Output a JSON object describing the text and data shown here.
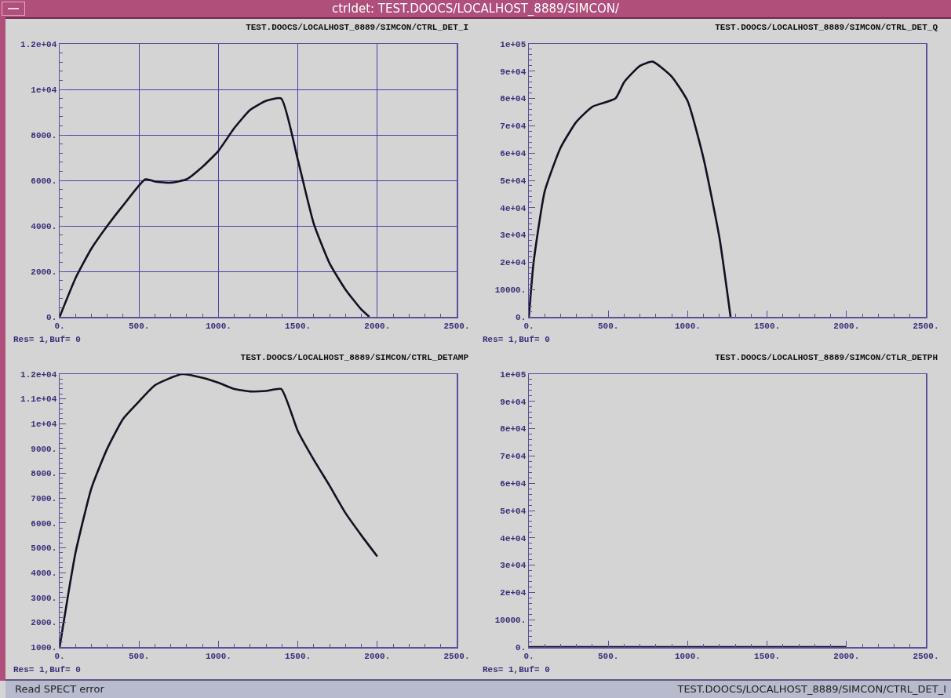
{
  "chart_data": [
    {
      "type": "line",
      "title": "TEST.DOOCS/LOCALHOST_8889/SIMCON/CTRL_DET_I",
      "annotations": [
        "Res= 1,Buf= 0",
        "ctrldet: TEST.DOOCS/LOCALHOST_8889/SIMCON/"
      ],
      "grid": true,
      "marker": "none",
      "line_style": "solid",
      "xlim": [
        0,
        2500
      ],
      "xticks": [
        {
          "value": 0,
          "label": "0."
        },
        {
          "value": 500,
          "label": "500."
        },
        {
          "value": 1000,
          "label": "1000."
        },
        {
          "value": 1500,
          "label": "1500."
        },
        {
          "value": 2000,
          "label": "2000."
        },
        {
          "value": 2500,
          "label": "2500."
        }
      ],
      "ylim": [
        0,
        12000
      ],
      "yticks": [
        {
          "value": 0,
          "label": "0."
        },
        {
          "value": 2000,
          "label": "2000."
        },
        {
          "value": 4000,
          "label": "4000."
        },
        {
          "value": 6000,
          "label": "6000."
        },
        {
          "value": 8000,
          "label": "8000."
        },
        {
          "value": 10000,
          "label": "1e+04"
        },
        {
          "value": 12000,
          "label": "1.2e+04"
        }
      ],
      "x": [
        0,
        100,
        200,
        300,
        400,
        540,
        600,
        700,
        800,
        900,
        1000,
        1100,
        1200,
        1300,
        1395,
        1500,
        1600,
        1700,
        1800,
        1900,
        1950
      ],
      "series": [
        {
          "color": "#111122",
          "values": [
            0,
            1700,
            3000,
            4000,
            4900,
            6050,
            5950,
            5900,
            6050,
            6600,
            7300,
            8300,
            9100,
            9500,
            9600,
            6900,
            4100,
            2350,
            1200,
            320,
            0
          ]
        }
      ]
    },
    {
      "type": "line",
      "title": "TEST.DOOCS/LOCALHOST_8889/SIMCON/CTRL_DET_Q",
      "annotations": [
        "Res= 1,Buf= 0"
      ],
      "grid": false,
      "marker": "none",
      "line_style": "solid",
      "xlim": [
        0,
        2500
      ],
      "xticks": [
        {
          "value": 0,
          "label": "0."
        },
        {
          "value": 500,
          "label": "500."
        },
        {
          "value": 1000,
          "label": "1000."
        },
        {
          "value": 1500,
          "label": "1500."
        },
        {
          "value": 2000,
          "label": "2000."
        },
        {
          "value": 2500,
          "label": "2500."
        }
      ],
      "ylim": [
        0,
        100000
      ],
      "yticks": [
        {
          "value": 0,
          "label": "0."
        },
        {
          "value": 10000,
          "label": "10000."
        },
        {
          "value": 20000,
          "label": "2e+04"
        },
        {
          "value": 30000,
          "label": "3e+04"
        },
        {
          "value": 40000,
          "label": "4e+04"
        },
        {
          "value": 50000,
          "label": "5e+04"
        },
        {
          "value": 60000,
          "label": "6e+04"
        },
        {
          "value": 70000,
          "label": "7e+04"
        },
        {
          "value": 80000,
          "label": "8e+04"
        },
        {
          "value": 90000,
          "label": "9e+04"
        },
        {
          "value": 100000,
          "label": "1e+05"
        }
      ],
      "x": [
        0,
        30,
        100,
        200,
        300,
        400,
        545,
        600,
        700,
        780,
        900,
        1000,
        1100,
        1200,
        1270
      ],
      "series": [
        {
          "color": "#111122",
          "values": [
            0,
            20000,
            46000,
            62000,
            71500,
            77000,
            80000,
            86000,
            92000,
            93500,
            88000,
            79000,
            58000,
            29000,
            0
          ]
        }
      ]
    },
    {
      "type": "line",
      "title": "TEST.DOOCS/LOCALHOST_8889/SIMCON/CTRL_DETAMP",
      "annotations": [
        "Res= 1,Buf= 0",
        "Read SPECT error"
      ],
      "grid": false,
      "marker": "none",
      "line_style": "solid",
      "xlim": [
        0,
        2500
      ],
      "xticks": [
        {
          "value": 0,
          "label": "0."
        },
        {
          "value": 500,
          "label": "500."
        },
        {
          "value": 1000,
          "label": "1000."
        },
        {
          "value": 1500,
          "label": "1500."
        },
        {
          "value": 2000,
          "label": "2000."
        },
        {
          "value": 2500,
          "label": "2500."
        }
      ],
      "ylim": [
        1000,
        12000
      ],
      "yticks": [
        {
          "value": 1000,
          "label": "1000."
        },
        {
          "value": 2000,
          "label": "2000."
        },
        {
          "value": 3000,
          "label": "3000."
        },
        {
          "value": 4000,
          "label": "4000."
        },
        {
          "value": 5000,
          "label": "5000."
        },
        {
          "value": 6000,
          "label": "6000."
        },
        {
          "value": 7000,
          "label": "7000."
        },
        {
          "value": 8000,
          "label": "8000."
        },
        {
          "value": 9000,
          "label": "9000."
        },
        {
          "value": 10000,
          "label": "1e+04"
        },
        {
          "value": 11000,
          "label": "1.1e+04"
        },
        {
          "value": 12000,
          "label": "1.2e+04"
        }
      ],
      "x": [
        0,
        50,
        100,
        200,
        300,
        400,
        500,
        600,
        770,
        900,
        1000,
        1100,
        1200,
        1300,
        1395,
        1500,
        1600,
        1700,
        1800,
        1900,
        2000
      ],
      "series": [
        {
          "color": "#111122",
          "values": [
            1000,
            2970,
            4800,
            7400,
            9000,
            10200,
            10900,
            11550,
            12000,
            11850,
            11650,
            11400,
            11300,
            11320,
            11400,
            9700,
            8550,
            7500,
            6400,
            5500,
            4650
          ]
        }
      ]
    },
    {
      "type": "line",
      "title": "TEST.DOOCS/LOCALHOST_8889/SIMCON/CTLR_DETPH",
      "annotations": [
        "Res= 1,Buf= 0",
        "TEST.DOOCS/LOCALHOST_8889/SIMCON/CTRL_DET_I"
      ],
      "grid": false,
      "marker": "none",
      "line_style": "solid",
      "xlim": [
        0,
        2500
      ],
      "xticks": [
        {
          "value": 0,
          "label": "0."
        },
        {
          "value": 500,
          "label": "500."
        },
        {
          "value": 1000,
          "label": "1000."
        },
        {
          "value": 1500,
          "label": "1500."
        },
        {
          "value": 2000,
          "label": "2000."
        },
        {
          "value": 2500,
          "label": "2500."
        }
      ],
      "ylim": [
        0,
        100000
      ],
      "yticks": [
        {
          "value": 0,
          "label": "0."
        },
        {
          "value": 10000,
          "label": "10000."
        },
        {
          "value": 20000,
          "label": "2e+04"
        },
        {
          "value": 30000,
          "label": "3e+04"
        },
        {
          "value": 40000,
          "label": "4e+04"
        },
        {
          "value": 50000,
          "label": "5e+04"
        },
        {
          "value": 60000,
          "label": "6e+04"
        },
        {
          "value": 70000,
          "label": "7e+04"
        },
        {
          "value": 80000,
          "label": "8e+04"
        },
        {
          "value": 90000,
          "label": "9e+04"
        },
        {
          "value": 100000,
          "label": "1e+05"
        }
      ],
      "x": [
        0,
        2000
      ],
      "series": [
        {
          "color": "#111122",
          "values": [
            0,
            0
          ]
        }
      ]
    }
  ]
}
